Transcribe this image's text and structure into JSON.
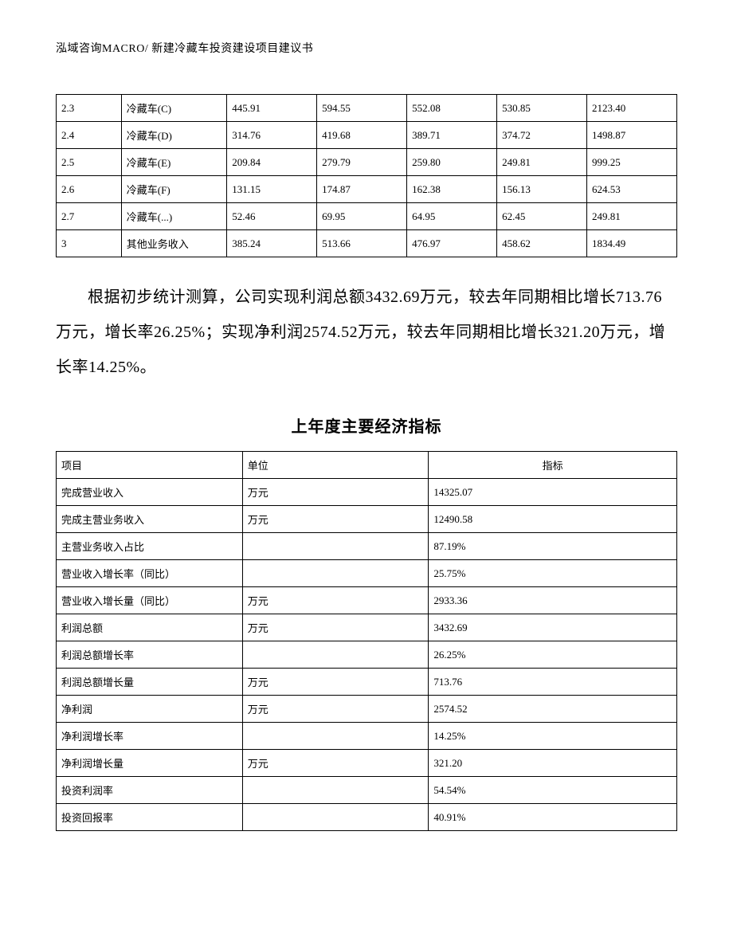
{
  "header": {
    "text": "泓域咨询MACRO/   新建冷藏车投资建设项目建议书"
  },
  "table1": {
    "rows": [
      {
        "id": "2.3",
        "name": "冷藏车(C)",
        "c1": "445.91",
        "c2": "594.55",
        "c3": "552.08",
        "c4": "530.85",
        "c5": "2123.40"
      },
      {
        "id": "2.4",
        "name": "冷藏车(D)",
        "c1": "314.76",
        "c2": "419.68",
        "c3": "389.71",
        "c4": "374.72",
        "c5": "1498.87"
      },
      {
        "id": "2.5",
        "name": "冷藏车(E)",
        "c1": "209.84",
        "c2": "279.79",
        "c3": "259.80",
        "c4": "249.81",
        "c5": "999.25"
      },
      {
        "id": "2.6",
        "name": "冷藏车(F)",
        "c1": "131.15",
        "c2": "174.87",
        "c3": "162.38",
        "c4": "156.13",
        "c5": "624.53"
      },
      {
        "id": "2.7",
        "name": "冷藏车(...)",
        "c1": "52.46",
        "c2": "69.95",
        "c3": "64.95",
        "c4": "62.45",
        "c5": "249.81"
      },
      {
        "id": "3",
        "name": "其他业务收入",
        "c1": "385.24",
        "c2": "513.66",
        "c3": "476.97",
        "c4": "458.62",
        "c5": "1834.49"
      }
    ]
  },
  "paragraph": {
    "text": "根据初步统计测算，公司实现利润总额3432.69万元，较去年同期相比增长713.76万元，增长率26.25%；实现净利润2574.52万元，较去年同期相比增长321.20万元，增长率14.25%。"
  },
  "section_title": "上年度主要经济指标",
  "table2": {
    "columns": [
      "项目",
      "单位",
      "指标"
    ],
    "rows": [
      {
        "item": "完成营业收入",
        "unit": "万元",
        "value": "14325.07"
      },
      {
        "item": "完成主营业务收入",
        "unit": "万元",
        "value": "12490.58"
      },
      {
        "item": "主营业务收入占比",
        "unit": "",
        "value": "87.19%"
      },
      {
        "item": "营业收入增长率（同比）",
        "unit": "",
        "value": "25.75%"
      },
      {
        "item": "营业收入增长量（同比）",
        "unit": "万元",
        "value": "2933.36"
      },
      {
        "item": "利润总额",
        "unit": "万元",
        "value": "3432.69"
      },
      {
        "item": "利润总额增长率",
        "unit": "",
        "value": "26.25%"
      },
      {
        "item": "利润总额增长量",
        "unit": "万元",
        "value": "713.76"
      },
      {
        "item": "净利润",
        "unit": "万元",
        "value": "2574.52"
      },
      {
        "item": "净利润增长率",
        "unit": "",
        "value": "14.25%"
      },
      {
        "item": "净利润增长量",
        "unit": "万元",
        "value": "321.20"
      },
      {
        "item": "投资利润率",
        "unit": "",
        "value": "54.54%"
      },
      {
        "item": "投资回报率",
        "unit": "",
        "value": "40.91%"
      }
    ]
  }
}
